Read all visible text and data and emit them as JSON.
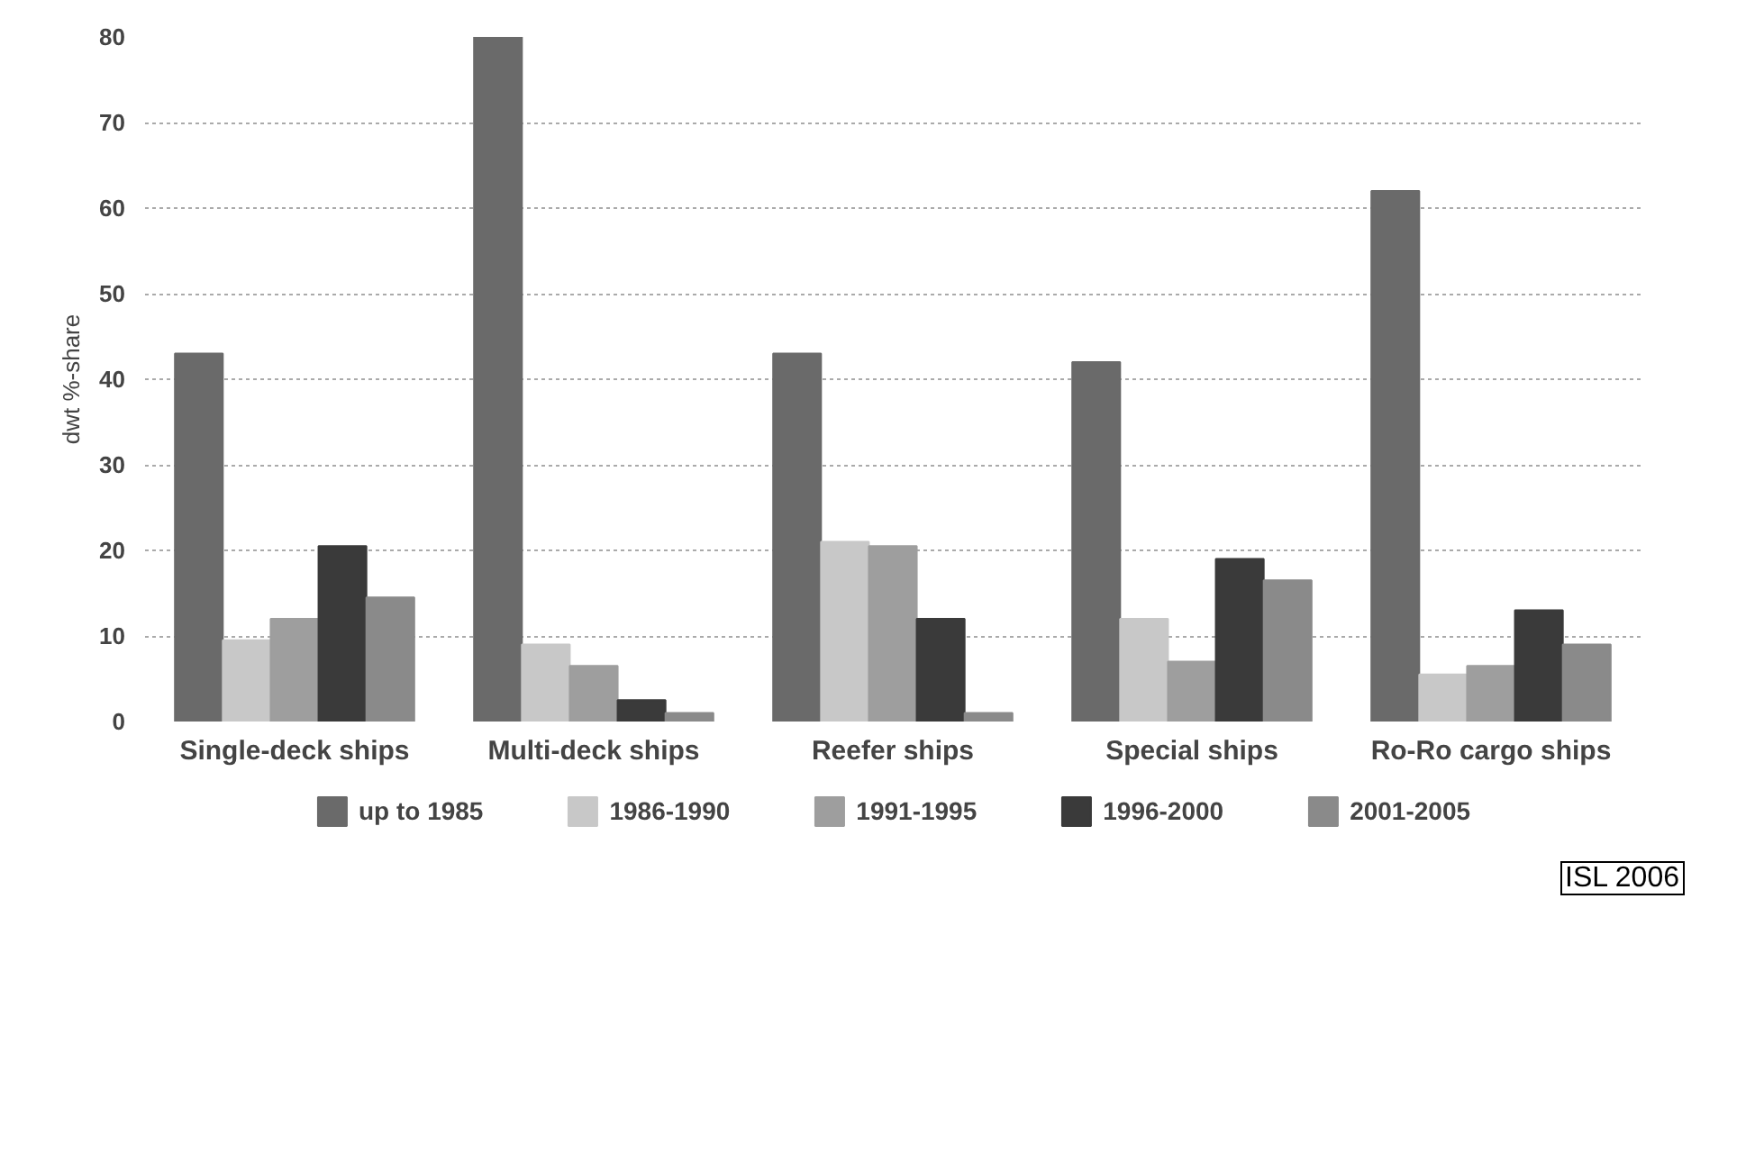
{
  "chart_data": {
    "type": "bar",
    "ylabel": "dwt %-share",
    "categories": [
      "Single-deck ships",
      "Multi-deck ships",
      "Reefer ships",
      "Special ships",
      "Ro-Ro cargo ships"
    ],
    "series": [
      {
        "name": "up to 1985",
        "color": "#6a6a6a",
        "values": [
          43,
          80,
          43,
          42,
          62
        ]
      },
      {
        "name": "1986-1990",
        "color": "#c8c8c8",
        "values": [
          9.5,
          9,
          21,
          12,
          5.5
        ]
      },
      {
        "name": "1991-1995",
        "color": "#9e9e9e",
        "values": [
          12,
          6.5,
          20.5,
          7,
          6.5
        ]
      },
      {
        "name": "1996-2000",
        "color": "#3a3a3a",
        "values": [
          20.5,
          2.5,
          12,
          19,
          13
        ]
      },
      {
        "name": "2001-2005",
        "color": "#8a8a8a",
        "values": [
          14.5,
          1,
          1,
          16.5,
          9
        ]
      }
    ],
    "ylim": [
      0,
      80
    ],
    "yticks": [
      0,
      10,
      20,
      30,
      40,
      50,
      60,
      70,
      80
    ],
    "grid": "y",
    "legend": "bottom",
    "annotations": [
      "ISL 2006"
    ]
  }
}
